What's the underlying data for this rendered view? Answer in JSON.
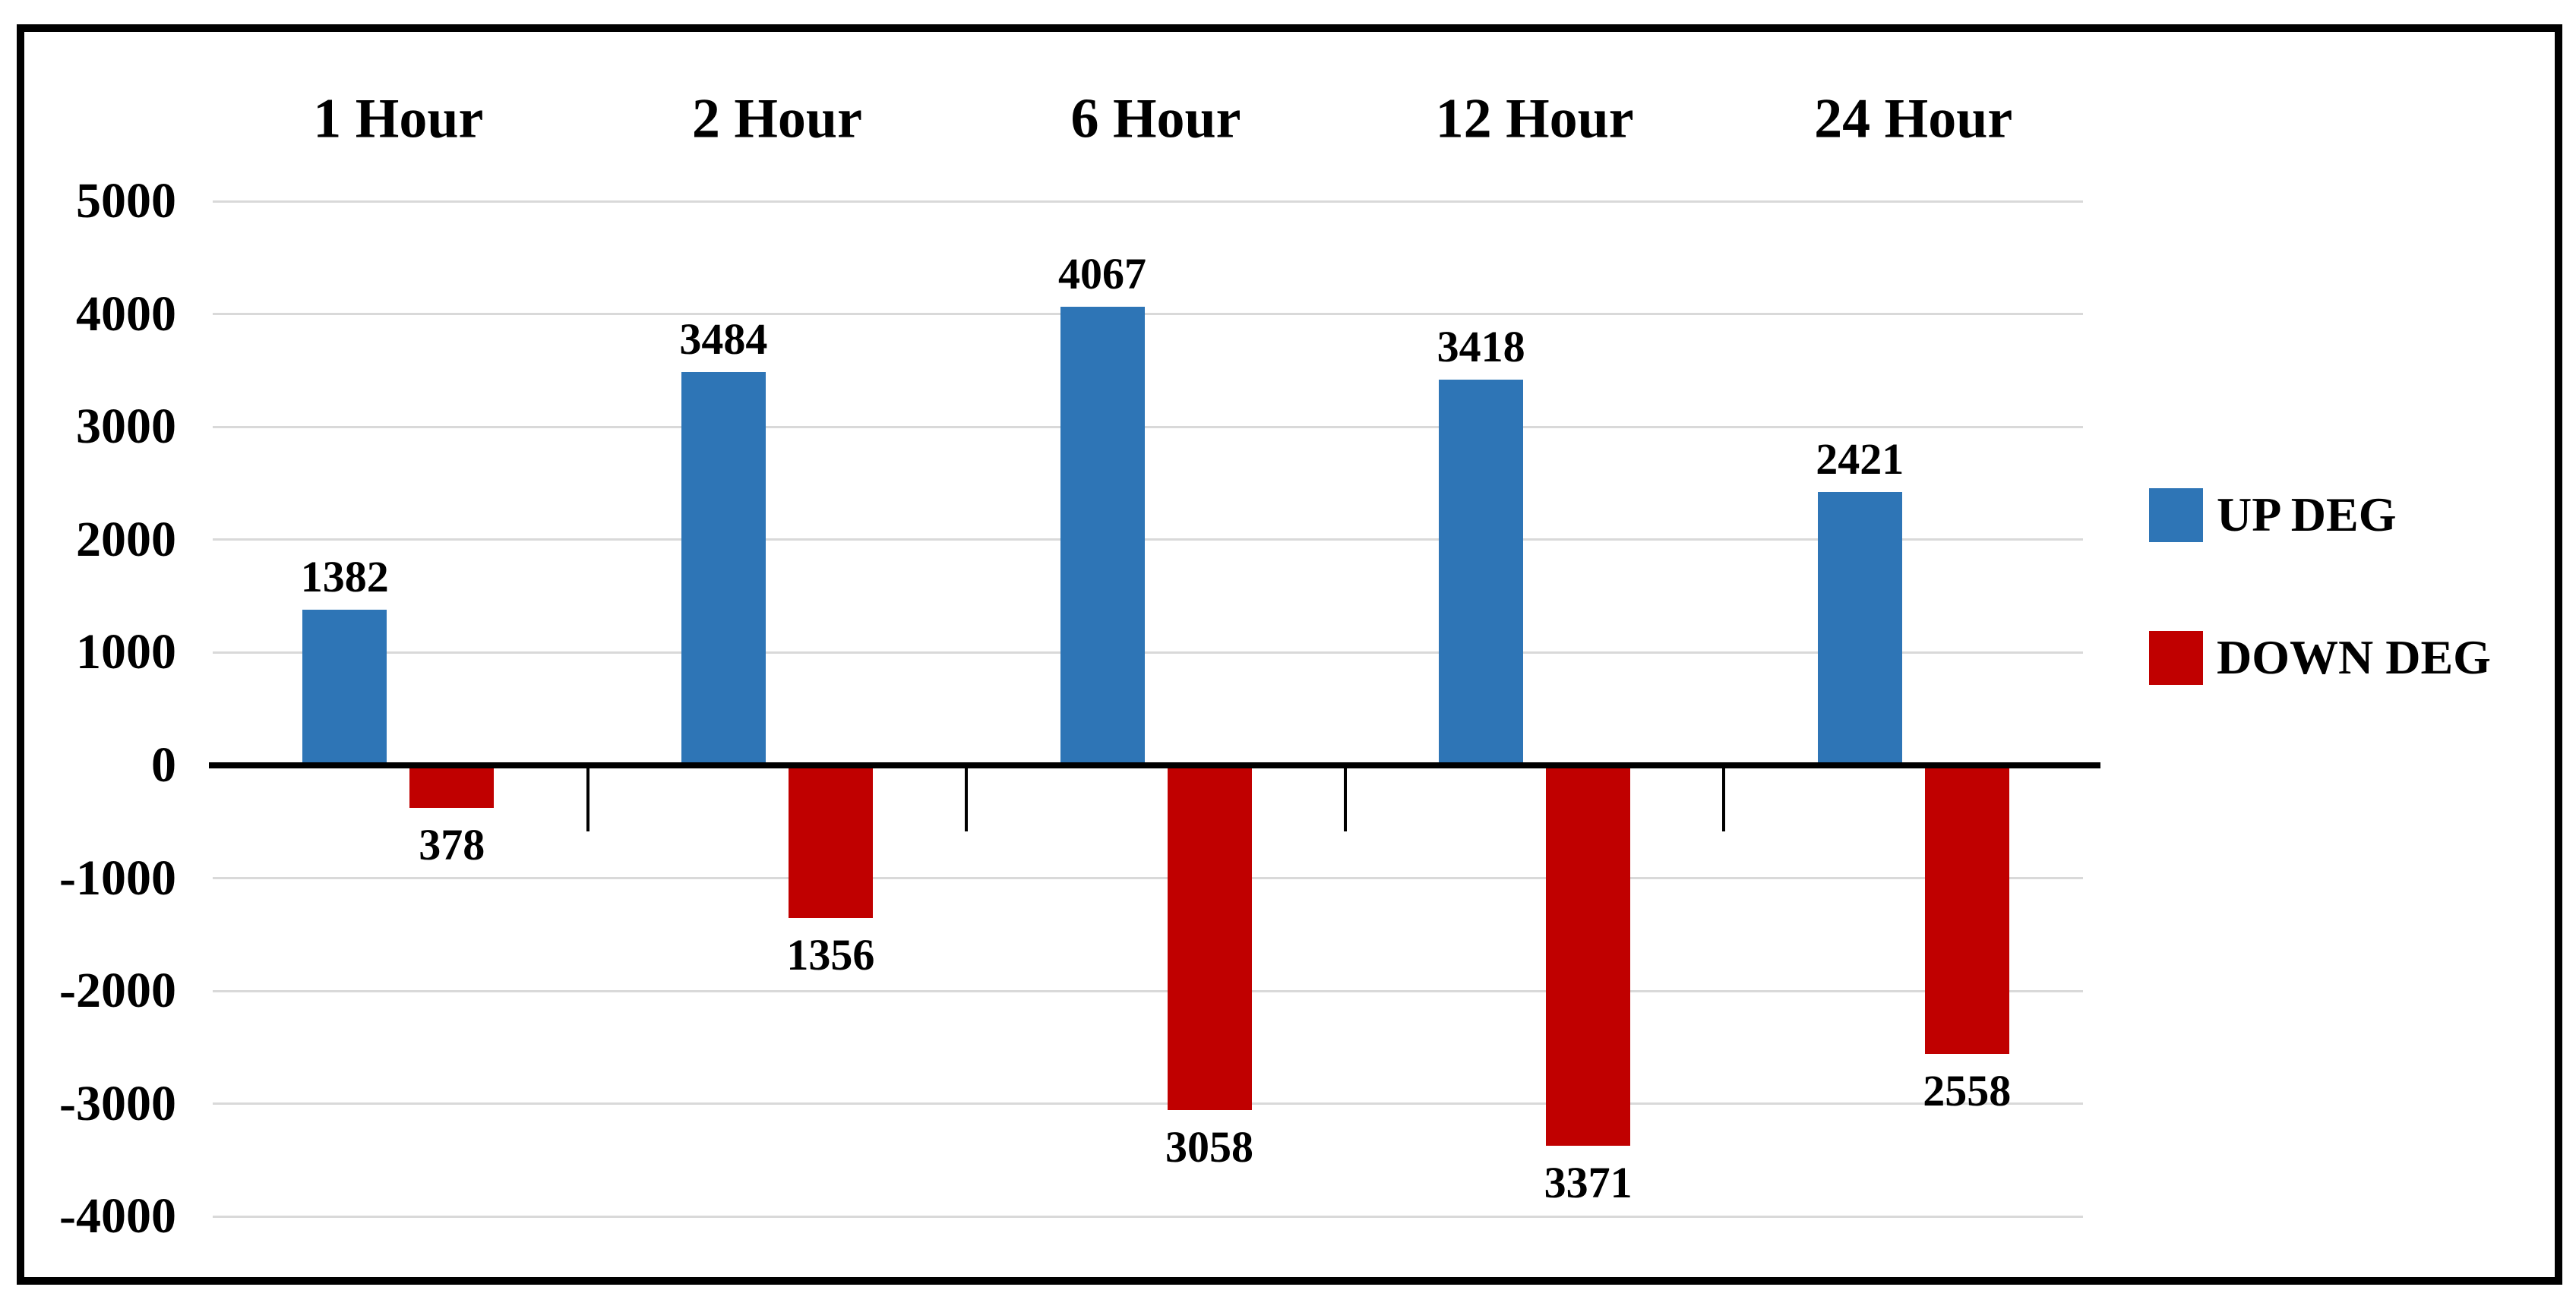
{
  "chart_data": {
    "type": "bar",
    "categories": [
      "1 Hour",
      "2 Hour",
      "6 Hour",
      "12 Hour",
      "24 Hour"
    ],
    "series": [
      {
        "name": "UP DEG",
        "color": "#2E75B6",
        "values": [
          1382,
          3484,
          4067,
          3418,
          2421
        ]
      },
      {
        "name": "DOWN DEG",
        "color": "#C00000",
        "values": [
          -378,
          -1356,
          -3058,
          -3371,
          -2558
        ]
      }
    ],
    "data_labels": {
      "style": "absolute-value",
      "up": [
        "1382",
        "3484",
        "4067",
        "3418",
        "2421"
      ],
      "down": [
        "378",
        "1356",
        "3058",
        "3371",
        "2558"
      ]
    },
    "y_axis": {
      "min": -4000,
      "max": 5000,
      "step": 1000,
      "tick_labels": [
        "5000",
        "4000",
        "3000",
        "2000",
        "1000",
        "0",
        "-1000",
        "-2000",
        "-3000",
        "-4000"
      ]
    },
    "grid": true,
    "legend_position": "right",
    "category_labels_position": "top"
  },
  "colors": {
    "up_bar": "#2E75B6",
    "down_bar": "#C00000",
    "axis": "#000000",
    "gridline": "#D9D9D9",
    "text": "#000000",
    "frame_border": "#000000",
    "background": "#FFFFFF"
  }
}
